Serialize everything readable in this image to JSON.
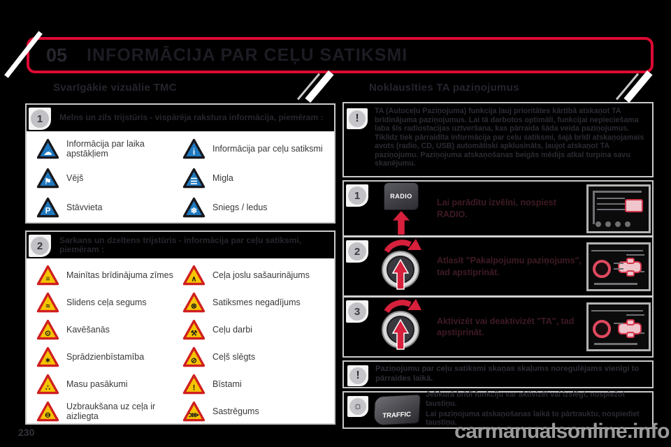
{
  "page": {
    "chapter": "05",
    "title": "INFORMĀCIJA PAR CEĻU SATIKSMI",
    "page_number": "230",
    "watermark": "carmanualsonline.info"
  },
  "colors": {
    "accent_red": "#dd0a32",
    "triangle_blue": "#1f79c0",
    "triangle_yellow": "#f5c400",
    "triangle_red_border": "#cf1f1f",
    "arrow_red": "#d6203c"
  },
  "left": {
    "header": "Svarīgākie vizuālie TMC",
    "sections": [
      {
        "number": "1",
        "heading": "Melns un zils trijstūris - vispārēja rakstura informācija, piemēram :",
        "items": [
          {
            "icon": "weather-info-triangle-icon",
            "label": "Informācija par laika apstākļiem"
          },
          {
            "icon": "traffic-info-triangle-icon",
            "label": "Informācija par ceļu satiksmi"
          },
          {
            "icon": "wind-triangle-icon",
            "label": "Vējš"
          },
          {
            "icon": "fog-triangle-icon",
            "label": "Migla"
          },
          {
            "icon": "parking-triangle-icon",
            "label": "Stāvvieta"
          },
          {
            "icon": "snow-ice-triangle-icon",
            "label": "Sniegs / ledus"
          }
        ]
      },
      {
        "number": "2",
        "heading": "Sarkans un dzeltens trijstūris - informācija par ceļu satiksmi, piemēram :",
        "items": [
          {
            "icon": "changed-warning-signs-icon",
            "label": "Mainītas brīdinājuma zīmes"
          },
          {
            "icon": "lane-narrowing-icon",
            "label": "Ceļa joslu sašaurinājums"
          },
          {
            "icon": "slippery-road-icon",
            "label": "Slidens ceļa segums"
          },
          {
            "icon": "traffic-accident-icon",
            "label": "Satiksmes negadījums"
          },
          {
            "icon": "delays-icon",
            "label": "Kavēšanās"
          },
          {
            "icon": "roadworks-icon",
            "label": "Ceļu darbi"
          },
          {
            "icon": "explosion-hazard-icon",
            "label": "Sprādzienbīstamība"
          },
          {
            "icon": "road-closed-icon",
            "label": "Ceļš slēgts"
          },
          {
            "icon": "mass-events-icon",
            "label": "Masu pasākumi"
          },
          {
            "icon": "danger-icon",
            "label": "Bīstami"
          },
          {
            "icon": "no-entry-icon",
            "label": "Uzbraukšana uz ceļa ir aizliegta"
          },
          {
            "icon": "traffic-jam-icon",
            "label": "Sastrēgums"
          }
        ]
      }
    ]
  },
  "right": {
    "header": "Noklausīties TA paziņojumus",
    "warning_symbol": "!",
    "intro": "TA (Autoceļu Paziņojuma) funkcija ļauj prioritātes kārtībā atskaņot TA brīdinājuma paziņojumus. Lai tā darbotos optimāli, funkcijai nepieciešama laba šīs radiostacijas uztveršana, kas pārraida šāda veida paziņojumus. Tiklīdz tiek pārraidīta informācija par ceļu satiksmi, šajā brīdī atskaņojamais avots (radio, CD, USB) automātiski apklusināts, ļaujot atskaņot TA paziņojumu. Paziņojuma atskaņošanas beigās mēdijs atkal turpina savu skanējumu.",
    "steps": [
      {
        "number": "1",
        "control": "radio-key",
        "control_label": "RADIO",
        "text": "Lai parādītu izvēlni, nospiest RADIO."
      },
      {
        "number": "2",
        "control": "rotary-knob",
        "text": "Atlasīt \"Pakalpojumu paziņojums\", tad apstiprināt."
      },
      {
        "number": "3",
        "control": "rotary-knob",
        "text": "Aktivizēt vai deaktivizēt \"TA\", tad apstiprināt."
      }
    ],
    "note_symbol": "!",
    "note": "Paziņojumu par ceļu satiksmi skaņas skaļums noregulējams vienīgi to pārraides laikā.",
    "traffic": {
      "bulb_symbol": "☼",
      "key_label": "TRAFFIC",
      "lines": [
        "Jebkurā brīdī funkciju var aktivizēt vai izslēgt, nospiežot taustiņu.",
        "Lai paziņojuma atskaņošanas laikā to pārtrauktu, nospiediet taustiņu."
      ]
    }
  }
}
